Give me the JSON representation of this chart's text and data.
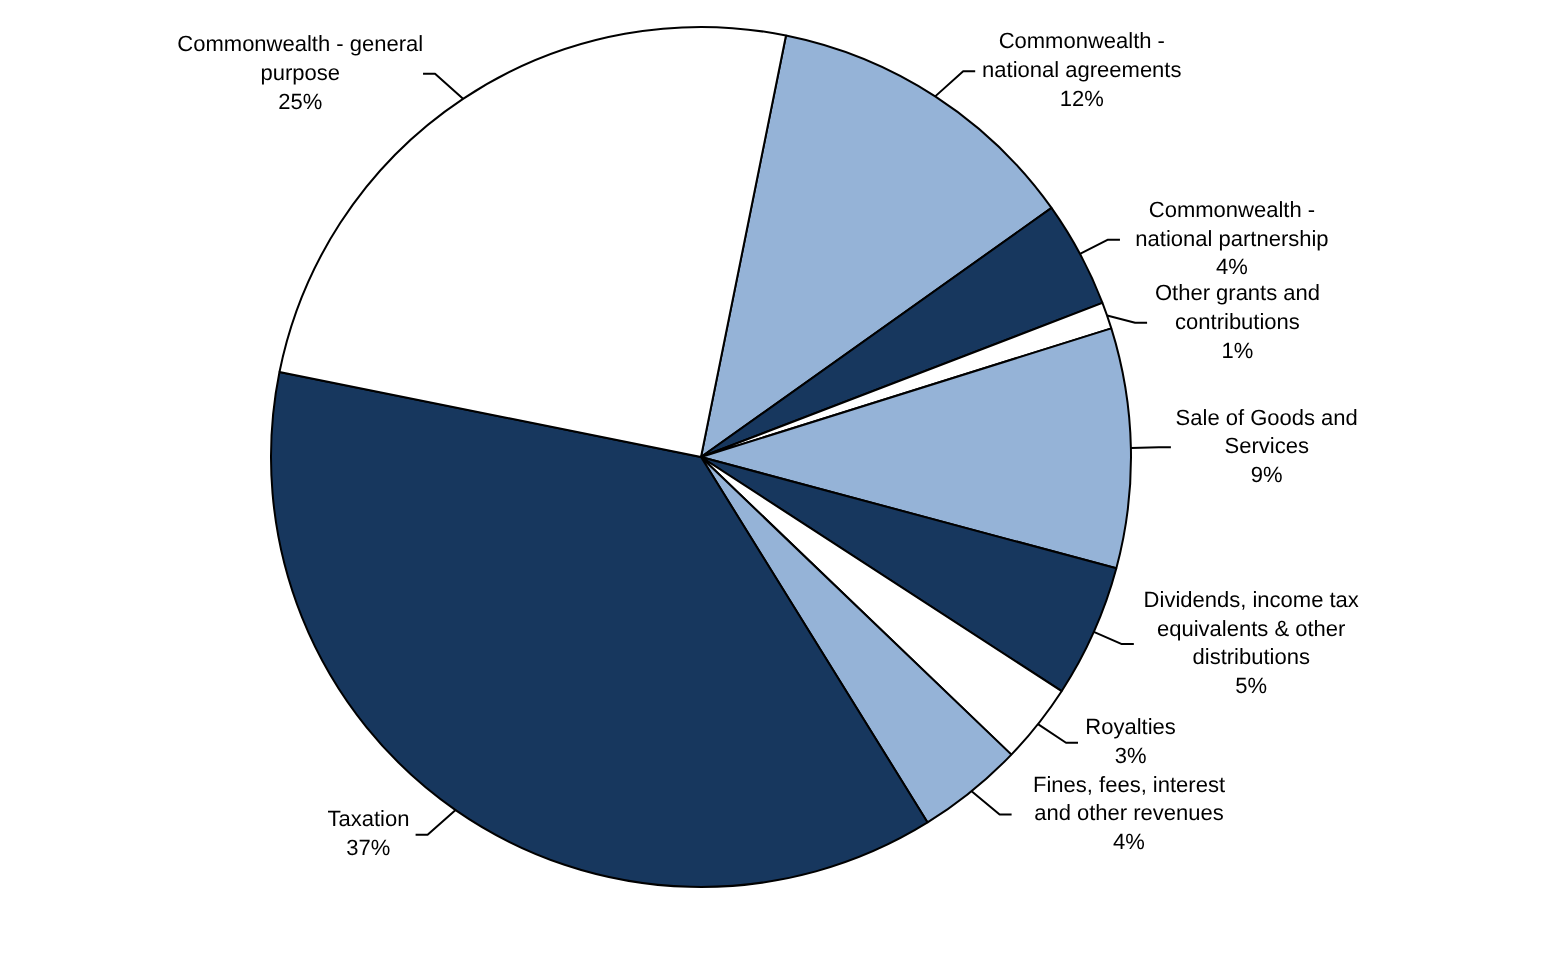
{
  "chart_data": {
    "type": "pie",
    "categories": [
      "Commonwealth - national agreements",
      "Commonwealth - national partnership",
      "Other grants and contributions",
      "Sale of Goods and Services",
      "Dividends, income tax equivalents & other distributions",
      "Royalties",
      "Fines, fees, interest and other revenues",
      "Taxation",
      "Commonwealth - general purpose"
    ],
    "values": [
      12,
      4,
      1,
      9,
      5,
      3,
      4,
      37,
      25
    ],
    "value_labels": [
      "12%",
      "4%",
      "1%",
      "9%",
      "5%",
      "3%",
      "4%",
      "37%",
      "25%"
    ],
    "colors": [
      "#95b3d7",
      "#17375e",
      "#ffffff",
      "#95b3d7",
      "#17375e",
      "#ffffff",
      "#95b3d7",
      "#17375e",
      "#ffffff"
    ]
  }
}
